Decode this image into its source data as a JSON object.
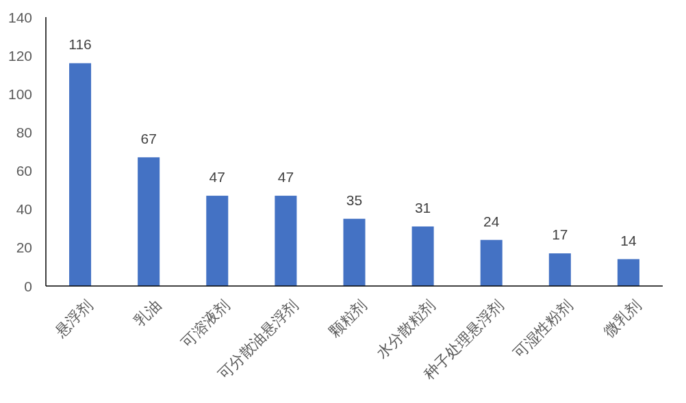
{
  "chart_data": {
    "type": "bar",
    "categories": [
      "悬浮剂",
      "乳油",
      "可溶液剂",
      "可分散油悬浮剂",
      "颗粒剂",
      "水分散粒剂",
      "种子处理悬浮剂",
      "可湿性粉剂",
      "微乳剂"
    ],
    "values": [
      116,
      67,
      47,
      47,
      35,
      31,
      24,
      17,
      14
    ],
    "color": "#4472c4",
    "ylim": [
      0,
      140
    ],
    "yticks": [
      0,
      20,
      40,
      60,
      80,
      100,
      120,
      140
    ],
    "data_labels": true,
    "grid": false
  }
}
